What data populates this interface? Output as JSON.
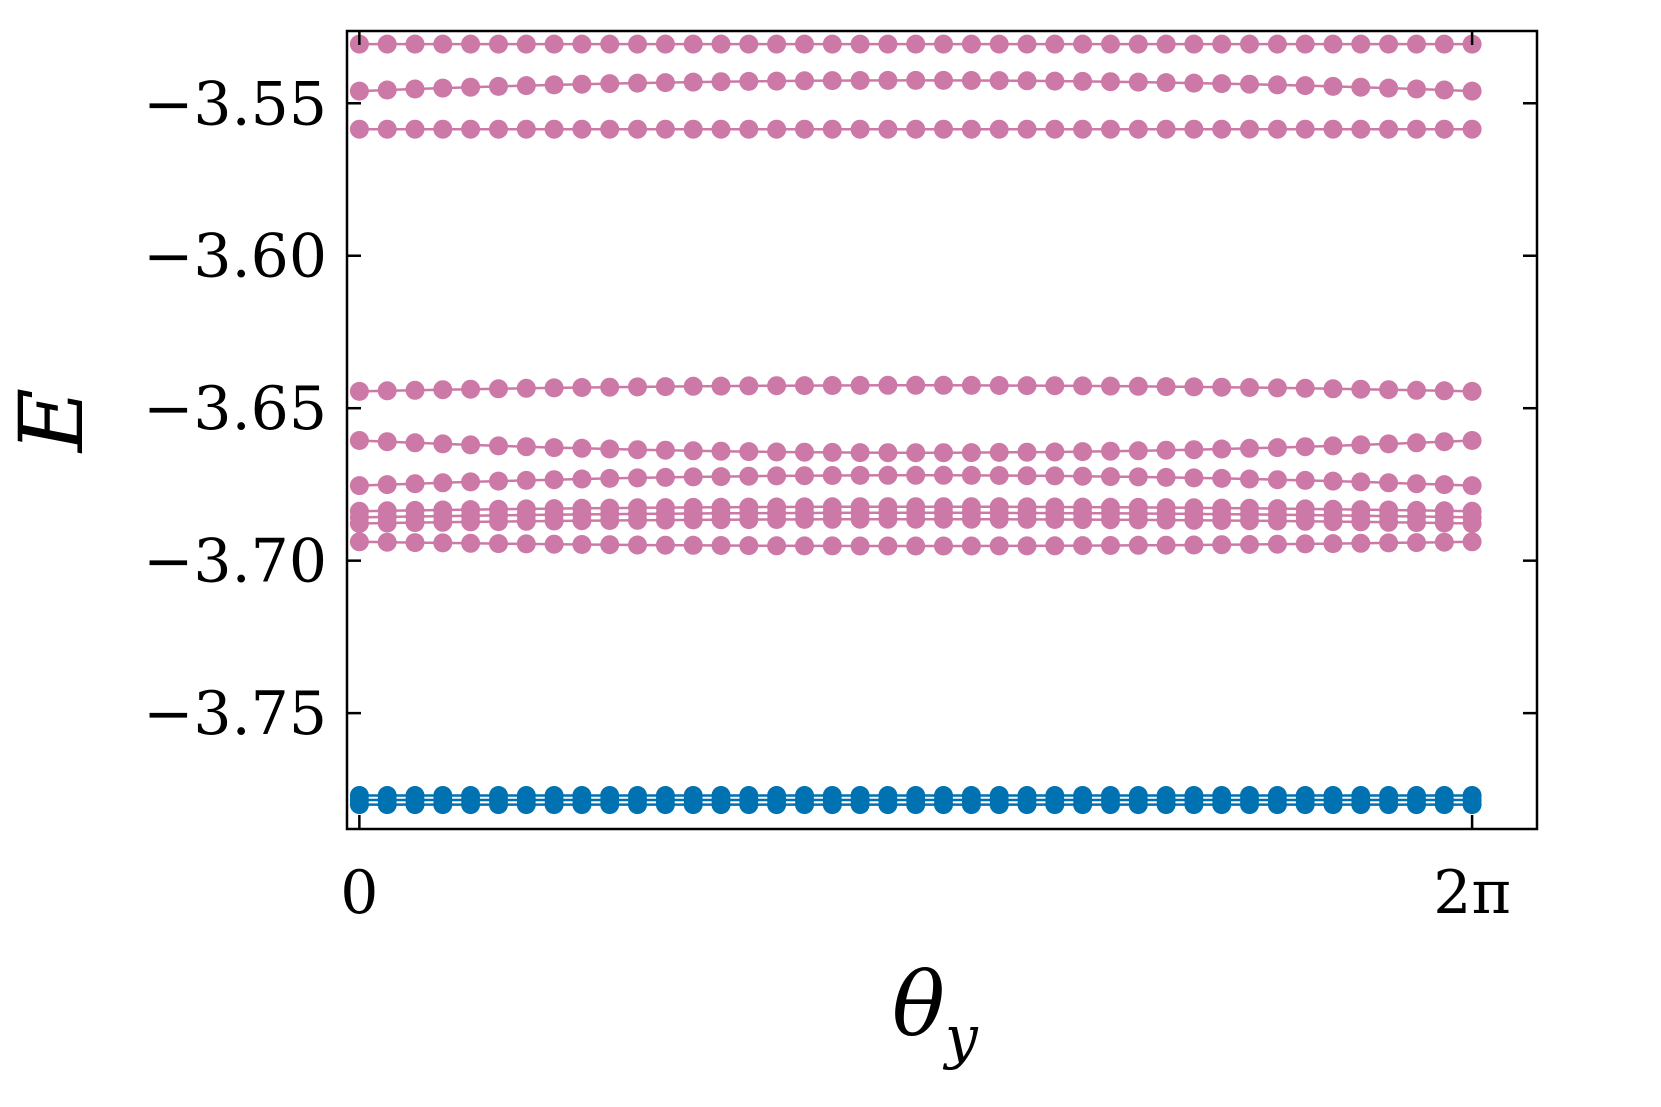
{
  "chart_data": {
    "type": "line",
    "title": "",
    "xlabel": "θ",
    "xlabel_subscript": "y",
    "ylabel": "E",
    "xlim": [
      -0.0698,
      6.6497
    ],
    "ylim": [
      -3.788,
      -3.5263
    ],
    "x_ticks": [
      {
        "value": 0,
        "label": "0"
      },
      {
        "value": 6.2832,
        "label": "2π"
      }
    ],
    "y_ticks": [
      {
        "value": -3.55,
        "label": "−3.55"
      },
      {
        "value": -3.6,
        "label": "−3.60"
      },
      {
        "value": -3.65,
        "label": "−3.65"
      },
      {
        "value": -3.7,
        "label": "−3.70"
      },
      {
        "value": -3.75,
        "label": "−3.75"
      }
    ],
    "grid": false,
    "markers": "circle",
    "x_range": [
      0,
      6.2832
    ],
    "points_per_series": 41,
    "colors": {
      "upper": "#cc79a7",
      "lower": "#0072b2"
    },
    "series": [
      {
        "group": "upper",
        "start": -3.5306,
        "mid": -3.5306,
        "end": -3.5306
      },
      {
        "group": "upper",
        "start": -3.546,
        "mid": -3.5425,
        "end": -3.546
      },
      {
        "group": "upper",
        "start": -3.5585,
        "mid": -3.5585,
        "end": -3.5585
      },
      {
        "group": "upper",
        "start": -3.6445,
        "mid": -3.6425,
        "end": -3.6445
      },
      {
        "group": "upper",
        "start": -3.6606,
        "mid": -3.6646,
        "end": -3.6606
      },
      {
        "group": "upper",
        "start": -3.6754,
        "mid": -3.672,
        "end": -3.6754
      },
      {
        "group": "upper",
        "start": -3.6838,
        "mid": -3.6823,
        "end": -3.6838
      },
      {
        "group": "upper",
        "start": -3.6858,
        "mid": -3.6843,
        "end": -3.6858
      },
      {
        "group": "upper",
        "start": -3.6878,
        "mid": -3.6864,
        "end": -3.6878
      },
      {
        "group": "upper",
        "start": -3.6938,
        "mid": -3.6952,
        "end": -3.6938
      },
      {
        "group": "lower",
        "start": -3.777,
        "mid": -3.777,
        "end": -3.777
      },
      {
        "group": "lower",
        "start": -3.7785,
        "mid": -3.7785,
        "end": -3.7785
      },
      {
        "group": "lower",
        "start": -3.78,
        "mid": -3.78,
        "end": -3.78
      }
    ]
  }
}
